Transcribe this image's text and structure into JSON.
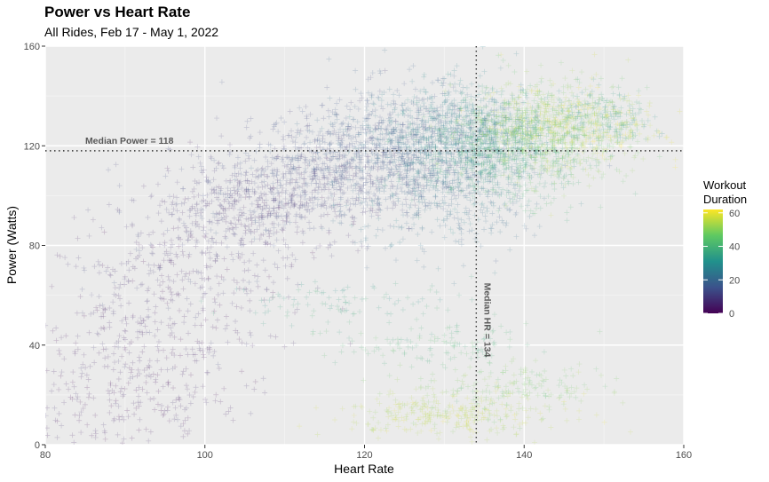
{
  "chart_data": {
    "type": "scatter",
    "title": "Power vs Heart Rate",
    "subtitle": "All Rides, Feb 17 - May 1, 2022",
    "xlabel": "Heart Rate",
    "ylabel": "Power (Watts)",
    "xlim": [
      80,
      160
    ],
    "ylim": [
      0,
      160
    ],
    "x_ticks": [
      "80",
      "100",
      "120",
      "140",
      "160"
    ],
    "y_ticks": [
      "0",
      "40",
      "80",
      "120",
      "160"
    ],
    "grid": true,
    "marker": "plus",
    "color_scale": {
      "title": "Workout Duration",
      "palette": "viridis",
      "range": [
        0,
        62
      ],
      "ticks": [
        "0",
        "20",
        "40",
        "60"
      ]
    },
    "reference_lines": [
      {
        "axis": "y",
        "value": 118,
        "label": "Median Power = 118",
        "style": "dotted"
      },
      {
        "axis": "x",
        "value": 134,
        "label": "Median HR = 134",
        "style": "dotted"
      }
    ],
    "point_clusters": [
      {
        "hr_center": 90,
        "hr_spread": 7,
        "power_center": 18,
        "power_spread": 14,
        "duration": 4,
        "count": 260
      },
      {
        "hr_center": 92,
        "hr_spread": 8,
        "power_center": 45,
        "power_spread": 12,
        "duration": 5,
        "count": 220
      },
      {
        "hr_center": 97,
        "hr_spread": 8,
        "power_center": 72,
        "power_spread": 10,
        "duration": 7,
        "count": 260
      },
      {
        "hr_center": 106,
        "hr_spread": 7,
        "power_center": 96,
        "power_spread": 9,
        "duration": 9,
        "count": 520
      },
      {
        "hr_center": 116,
        "hr_spread": 7,
        "power_center": 110,
        "power_spread": 10,
        "duration": 13,
        "count": 620
      },
      {
        "hr_center": 125,
        "hr_spread": 6,
        "power_center": 122,
        "power_spread": 11,
        "duration": 18,
        "count": 700
      },
      {
        "hr_center": 130,
        "hr_spread": 6,
        "power_center": 100,
        "power_spread": 12,
        "duration": 22,
        "count": 420
      },
      {
        "hr_center": 133,
        "hr_spread": 5,
        "power_center": 124,
        "power_spread": 10,
        "duration": 28,
        "count": 700
      },
      {
        "hr_center": 138,
        "hr_spread": 5,
        "power_center": 118,
        "power_spread": 10,
        "duration": 38,
        "count": 600
      },
      {
        "hr_center": 143,
        "hr_spread": 5,
        "power_center": 126,
        "power_spread": 10,
        "duration": 50,
        "count": 620
      },
      {
        "hr_center": 147,
        "hr_spread": 5,
        "power_center": 128,
        "power_spread": 8,
        "duration": 58,
        "count": 260
      },
      {
        "hr_center": 150,
        "hr_spread": 3,
        "power_center": 132,
        "power_spread": 6,
        "duration": 35,
        "count": 160
      },
      {
        "hr_center": 131,
        "hr_spread": 7,
        "power_center": 12,
        "power_spread": 4,
        "duration": 55,
        "count": 300
      },
      {
        "hr_center": 138,
        "hr_spread": 6,
        "power_center": 24,
        "power_spread": 5,
        "duration": 48,
        "count": 160
      },
      {
        "hr_center": 128,
        "hr_spread": 6,
        "power_center": 40,
        "power_spread": 4,
        "duration": 40,
        "count": 120
      },
      {
        "hr_center": 118,
        "hr_spread": 8,
        "power_center": 58,
        "power_spread": 4,
        "duration": 36,
        "count": 90
      }
    ]
  }
}
